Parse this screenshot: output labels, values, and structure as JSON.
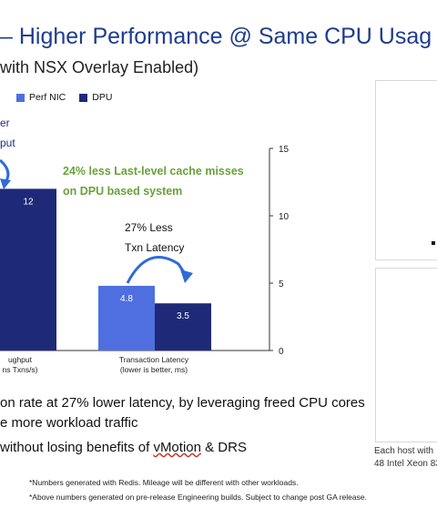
{
  "slide": {
    "title": "– Higher Performance @ Same CPU Usag",
    "subtitle": "with NSX Overlay Enabled)",
    "cut_label_1": "er",
    "cut_label_2": "put",
    "bullet_1": "on rate at 27% lower latency, by leveraging freed CPU cores",
    "bullet_2": "e more workload traffic",
    "bullet_3_pre": "without losing benefits of ",
    "bullet_3_vm": "vMotion",
    "bullet_3_post": " & DRS",
    "host_line_1": "Each host with",
    "host_line_2": "48 Intel Xeon 83",
    "footnote_1": "*Numbers generated with Redis. Mileage will be different with other workloads.",
    "footnote_2": "*Above numbers generated on pre-release Engineering builds. Subject to change post GA release."
  },
  "chart_data": {
    "type": "bar",
    "categories_lines": [
      [
        "ughput",
        "ns Txns/s)"
      ],
      [
        "Transaction Latency",
        "(lower is better, ms)"
      ]
    ],
    "series": [
      {
        "name": "Perf NIC",
        "color": "#4f6fe0",
        "values": [
          null,
          4.8
        ]
      },
      {
        "name": "DPU",
        "color": "#1e2a78",
        "values": [
          12,
          3.5
        ]
      }
    ],
    "ylim": [
      0,
      15
    ],
    "yticks": [
      0,
      5,
      10,
      15
    ],
    "grid": false,
    "legend_position": "top-left",
    "annotations": {
      "cache": "24% less Last-level cache misses",
      "cache_2": "on DPU based system",
      "latency": "27% Less",
      "latency_2": "Txn Latency"
    },
    "colors": {
      "cache_text": "#6aa13a",
      "arrow": "#2f6bd8"
    }
  }
}
